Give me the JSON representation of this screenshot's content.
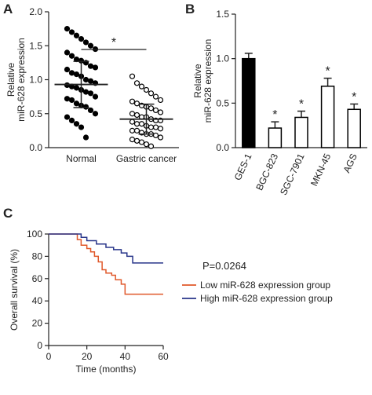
{
  "chart_data": [
    {
      "type": "scatter",
      "panel_label": "A",
      "ylabel": [
        "Relative",
        "miR-628 expression"
      ],
      "categories": [
        "Normal",
        "Gastric cancer"
      ],
      "groups": [
        {
          "color": "#000000",
          "values": [
            1.75,
            1.7,
            1.65,
            1.6,
            1.55,
            1.5,
            1.45,
            1.4,
            1.35,
            1.3,
            1.28,
            1.25,
            1.2,
            1.18,
            1.15,
            1.1,
            1.08,
            1.05,
            1.0,
            0.98,
            0.95,
            0.92,
            0.9,
            0.88,
            0.85,
            0.82,
            0.8,
            0.75,
            0.72,
            0.7,
            0.65,
            0.62,
            0.6,
            0.55,
            0.5,
            0.45,
            0.4,
            0.35,
            0.3,
            0.15
          ]
        },
        {
          "color": "#ffffff",
          "values": [
            1.05,
            0.95,
            0.9,
            0.85,
            0.8,
            0.75,
            0.7,
            0.68,
            0.65,
            0.62,
            0.6,
            0.58,
            0.55,
            0.52,
            0.5,
            0.48,
            0.45,
            0.45,
            0.42,
            0.4,
            0.4,
            0.38,
            0.35,
            0.35,
            0.32,
            0.3,
            0.3,
            0.28,
            0.25,
            0.25,
            0.22,
            0.2,
            0.2,
            0.18,
            0.15,
            0.12,
            0.1,
            0.08,
            0.05,
            0.02
          ]
        }
      ],
      "mean": [
        0.93,
        0.42
      ],
      "sd": [
        0.34,
        0.22
      ],
      "significance": "*",
      "ylim": [
        0,
        2
      ],
      "yticks": [
        {
          "value": 0,
          "label": "0.0"
        },
        {
          "value": 0.5,
          "label": "0.5"
        },
        {
          "value": 1,
          "label": "1.0"
        },
        {
          "value": 1.5,
          "label": "1.5"
        },
        {
          "value": 2,
          "label": "2.0"
        }
      ]
    },
    {
      "type": "bar",
      "panel_label": "B",
      "ylabel": [
        "Relative",
        "miR-628 expression"
      ],
      "categories": [
        "GES-1",
        "BGC-823",
        "SGC-7901",
        "MKN-45",
        "AGS"
      ],
      "values": [
        1.0,
        0.22,
        0.34,
        0.69,
        0.43
      ],
      "errors": [
        0.06,
        0.07,
        0.07,
        0.09,
        0.06
      ],
      "colors": [
        "#000000",
        "#ffffff",
        "#ffffff",
        "#ffffff",
        "#ffffff"
      ],
      "significance": [
        null,
        "*",
        "*",
        "*",
        "*"
      ],
      "ylim": [
        0,
        1.5
      ],
      "yticks": [
        {
          "value": 0,
          "label": "0.0"
        },
        {
          "value": 0.5,
          "label": "0.5"
        },
        {
          "value": 1,
          "label": "1.0"
        },
        {
          "value": 1.5,
          "label": "1.5"
        }
      ]
    },
    {
      "type": "line",
      "panel_label": "C",
      "xlabel": "Time (months)",
      "ylabel": "Overall survival (%)",
      "annotation": "P=0.0264",
      "series": [
        {
          "name": "Low miR-628 expression group",
          "color": "#e0582a",
          "x": [
            0,
            15,
            17,
            20,
            22,
            24,
            26,
            28,
            30,
            33,
            35,
            38,
            40,
            60
          ],
          "values": [
            100,
            95,
            90,
            87,
            84,
            80,
            75,
            68,
            65,
            63,
            59,
            55,
            46,
            46
          ]
        },
        {
          "name": "High miR-628 expression group",
          "color": "#28358a",
          "x": [
            0,
            17,
            20,
            25,
            30,
            34,
            38,
            41,
            44,
            60
          ],
          "values": [
            100,
            97,
            94,
            91,
            88,
            86,
            83,
            80,
            74,
            74
          ]
        }
      ],
      "xlim": [
        0,
        60
      ],
      "xticks": [
        0,
        20,
        40,
        60
      ],
      "ylim": [
        0,
        100
      ],
      "yticks": [
        0,
        20,
        40,
        60,
        80,
        100
      ]
    }
  ]
}
